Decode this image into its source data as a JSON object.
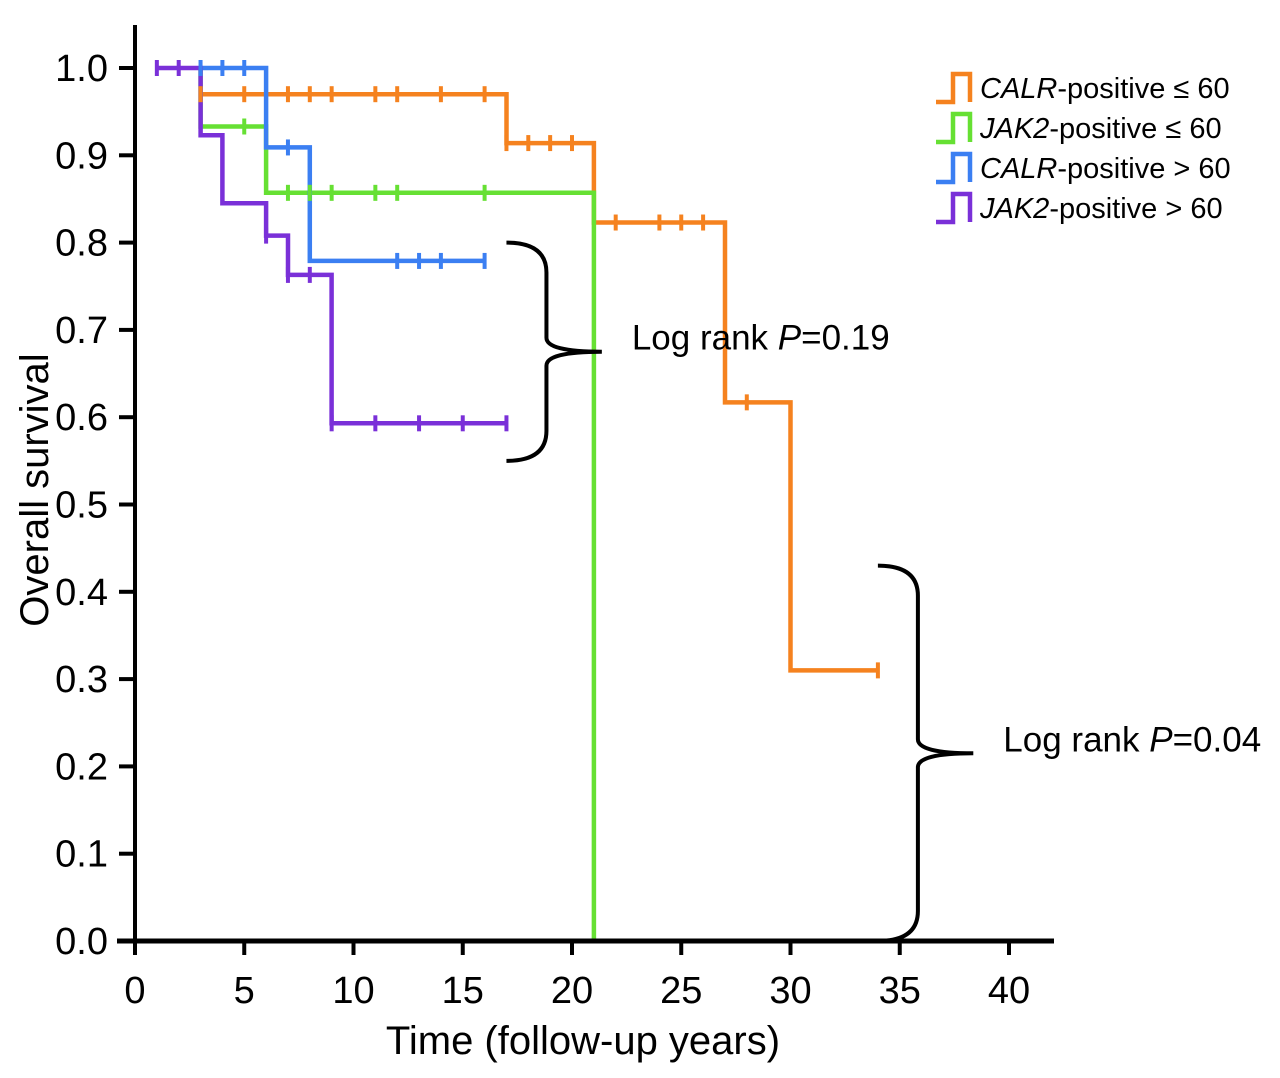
{
  "chart_data": {
    "type": "line",
    "subtype": "kaplan-meier step",
    "title": "",
    "xlabel": "Time (follow-up years)",
    "ylabel": "Overall survival",
    "xlim": [
      0,
      42
    ],
    "ylim": [
      0,
      1.05
    ],
    "x_ticks": [
      0,
      5,
      10,
      15,
      20,
      25,
      30,
      35,
      40
    ],
    "x_tick_labels": [
      "0",
      "5",
      "10",
      "15",
      "20",
      "25",
      "30",
      "35",
      "40"
    ],
    "y_ticks": [
      0,
      0.1,
      0.2,
      0.3,
      0.4,
      0.5,
      0.6,
      0.7,
      0.8,
      0.9,
      1.0
    ],
    "y_tick_labels": [
      "0.0",
      "0.1",
      "0.2",
      "0.3",
      "0.4",
      "0.5",
      "0.6",
      "0.7",
      "0.8",
      "0.9",
      "1.0"
    ],
    "grid": false,
    "legend_position": "top-right",
    "series": [
      {
        "name": "CALR-positive ≤ 60",
        "gene": "CALR",
        "suffix": "-positive ≤ 60",
        "color": "#f5821f",
        "points": [
          [
            3,
            0.97
          ],
          [
            17,
            0.97
          ],
          [
            17,
            0.914
          ],
          [
            21,
            0.914
          ],
          [
            21,
            0.823
          ],
          [
            27,
            0.823
          ],
          [
            27,
            0.617
          ],
          [
            30,
            0.617
          ],
          [
            30,
            0.31
          ],
          [
            34,
            0.31
          ]
        ],
        "censored": [
          [
            3,
            0.97
          ],
          [
            5,
            0.97
          ],
          [
            7,
            0.97
          ],
          [
            8,
            0.97
          ],
          [
            9,
            0.97
          ],
          [
            11,
            0.97
          ],
          [
            12,
            0.97
          ],
          [
            14,
            0.97
          ],
          [
            16,
            0.97
          ],
          [
            17,
            0.914
          ],
          [
            18,
            0.914
          ],
          [
            19,
            0.914
          ],
          [
            20,
            0.914
          ],
          [
            22,
            0.823
          ],
          [
            24,
            0.823
          ],
          [
            25,
            0.823
          ],
          [
            26,
            0.823
          ],
          [
            28,
            0.617
          ],
          [
            34,
            0.31
          ]
        ]
      },
      {
        "name": "JAK2-positive ≤ 60",
        "gene": "JAK2",
        "suffix": "-positive ≤ 60",
        "color": "#66e033",
        "points": [
          [
            3,
            1.0
          ],
          [
            3,
            0.933
          ],
          [
            6,
            0.933
          ],
          [
            6,
            0.857
          ],
          [
            21,
            0.857
          ],
          [
            21,
            0.0
          ]
        ],
        "censored": [
          [
            5,
            0.933
          ],
          [
            7,
            0.857
          ],
          [
            8,
            0.857
          ],
          [
            9,
            0.857
          ],
          [
            11,
            0.857
          ],
          [
            12,
            0.857
          ],
          [
            16,
            0.857
          ]
        ]
      },
      {
        "name": "CALR-positive > 60",
        "gene": "CALR",
        "suffix": "-positive > 60",
        "color": "#3b7ff2",
        "points": [
          [
            3,
            1.0
          ],
          [
            6,
            1.0
          ],
          [
            6,
            0.909
          ],
          [
            8,
            0.909
          ],
          [
            8,
            0.779
          ],
          [
            16,
            0.779
          ]
        ],
        "censored": [
          [
            3,
            1.0
          ],
          [
            4,
            1.0
          ],
          [
            5,
            1.0
          ],
          [
            7,
            0.909
          ],
          [
            12,
            0.779
          ],
          [
            13,
            0.779
          ],
          [
            14,
            0.779
          ],
          [
            16,
            0.779
          ]
        ]
      },
      {
        "name": "JAK2-positive > 60",
        "gene": "JAK2",
        "suffix": "-positive > 60",
        "color": "#7a30d8",
        "points": [
          [
            1,
            1.0
          ],
          [
            3,
            1.0
          ],
          [
            3,
            0.923
          ],
          [
            4,
            0.923
          ],
          [
            4,
            0.845
          ],
          [
            6,
            0.845
          ],
          [
            6,
            0.808
          ],
          [
            7,
            0.808
          ],
          [
            7,
            0.763
          ],
          [
            9,
            0.763
          ],
          [
            9,
            0.593
          ],
          [
            17,
            0.593
          ]
        ],
        "censored": [
          [
            1,
            1.0
          ],
          [
            2,
            1.0
          ],
          [
            6,
            0.808
          ],
          [
            7,
            0.763
          ],
          [
            8,
            0.763
          ],
          [
            9,
            0.593
          ],
          [
            11,
            0.593
          ],
          [
            13,
            0.593
          ],
          [
            15,
            0.593
          ],
          [
            17,
            0.593
          ]
        ]
      }
    ],
    "annotations": [
      {
        "prefix": "Log rank ",
        "pvar": "P",
        "value": "=0.19",
        "bracket_x": 17,
        "bracket_y_range": [
          0.55,
          0.8
        ],
        "bracket_tip_x": 21
      },
      {
        "prefix": "Log rank ",
        "pvar": "P",
        "value": "=0.04",
        "bracket_x": 34,
        "bracket_y_range": [
          0.0,
          0.43
        ],
        "bracket_tip_x": 38
      }
    ]
  }
}
